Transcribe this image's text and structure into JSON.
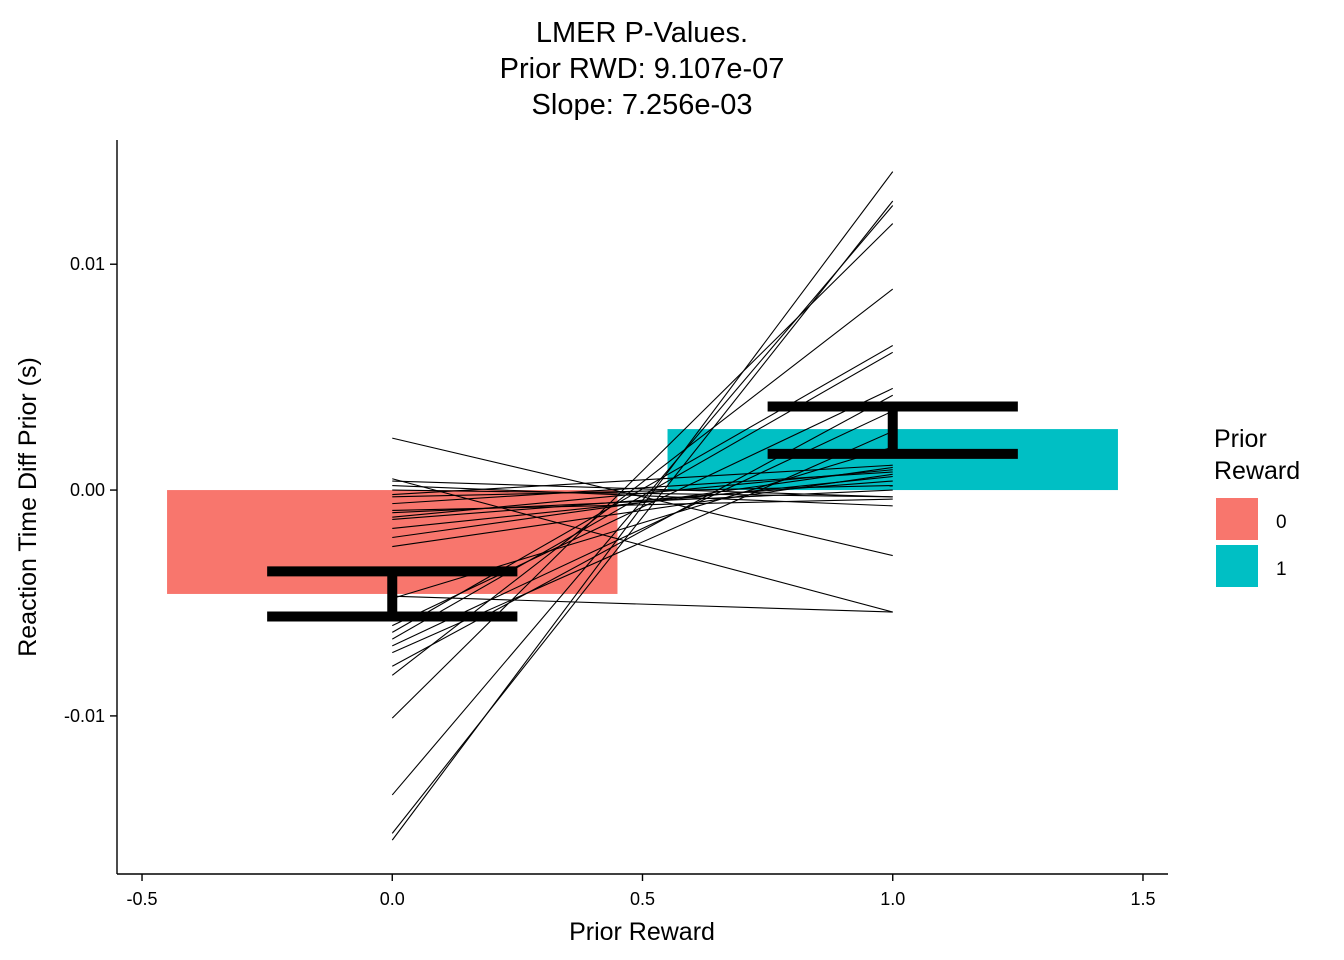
{
  "chart_data": {
    "type": "bar",
    "title_lines": [
      "LMER P-Values.",
      "Prior RWD:  9.107e-07",
      "Slope:  7.256e-03"
    ],
    "xlabel": "Prior Reward",
    "ylabel": "Reaction Time Diff Prior (s)",
    "xlim": [
      -0.55,
      1.55
    ],
    "ylim": [
      -0.017,
      0.0155
    ],
    "x_ticks": [
      -0.5,
      0.0,
      0.5,
      1.0,
      1.5
    ],
    "x_tick_labels": [
      "-0.5",
      "0.0",
      "0.5",
      "1.0",
      "1.5"
    ],
    "y_ticks": [
      0.01,
      0.0,
      -0.01
    ],
    "y_tick_labels": [
      "0.01",
      "0.00",
      "-0.01"
    ],
    "grid": false,
    "legend": {
      "title_lines": [
        "Prior",
        "Reward"
      ],
      "position": "right",
      "items": [
        {
          "label": "0",
          "color": "#F8766D"
        },
        {
          "label": "1",
          "color": "#00BFC4"
        }
      ]
    },
    "bars": [
      {
        "category": "0",
        "x": 0,
        "value": -0.0046,
        "color": "#F8766D"
      },
      {
        "category": "1",
        "x": 1,
        "value": 0.0027,
        "color": "#00BFC4"
      }
    ],
    "error_bars": [
      {
        "x": 0,
        "ymin": -0.0056,
        "ymax": -0.0036
      },
      {
        "x": 1,
        "ymin": 0.0016,
        "ymax": 0.0037
      }
    ],
    "subject_lines": [
      {
        "y0": 0.0023,
        "y1": -0.0029
      },
      {
        "y0": 0.0005,
        "y1": -0.0054
      },
      {
        "y0": 0.0004,
        "y1": -0.0003
      },
      {
        "y0": 0.0002,
        "y1": -0.0007
      },
      {
        "y0": 0.0,
        "y1": -0.0003
      },
      {
        "y0": -0.0003,
        "y1": 0.0002
      },
      {
        "y0": -0.0006,
        "y1": 0.0008
      },
      {
        "y0": -0.001,
        "y1": 0.0
      },
      {
        "y0": -0.0013,
        "y1": 0.0004
      },
      {
        "y0": -0.0017,
        "y1": 0.0006
      },
      {
        "y0": -0.0021,
        "y1": 0.001
      },
      {
        "y0": -0.0025,
        "y1": 0.0007
      },
      {
        "y0": -0.0047,
        "y1": -0.0054
      },
      {
        "y0": -0.006,
        "y1": 0.0045
      },
      {
        "y0": -0.0063,
        "y1": 0.0064
      },
      {
        "y0": -0.0066,
        "y1": 0.0061
      },
      {
        "y0": -0.0069,
        "y1": 0.0035
      },
      {
        "y0": -0.0072,
        "y1": 0.0026
      },
      {
        "y0": -0.0078,
        "y1": 0.0042
      },
      {
        "y0": -0.0082,
        "y1": 0.0089
      },
      {
        "y0": -0.0101,
        "y1": 0.0118
      },
      {
        "y0": -0.0135,
        "y1": 0.0126
      },
      {
        "y0": -0.0152,
        "y1": 0.0128
      },
      {
        "y0": -0.0155,
        "y1": 0.0141
      },
      {
        "y0": -0.0048,
        "y1": 0.0019
      },
      {
        "y0": -0.0009,
        "y1": -0.0004
      },
      {
        "y0": -0.0002,
        "y1": 0.0011
      },
      {
        "y0": -0.0012,
        "y1": 0.0009
      }
    ]
  }
}
